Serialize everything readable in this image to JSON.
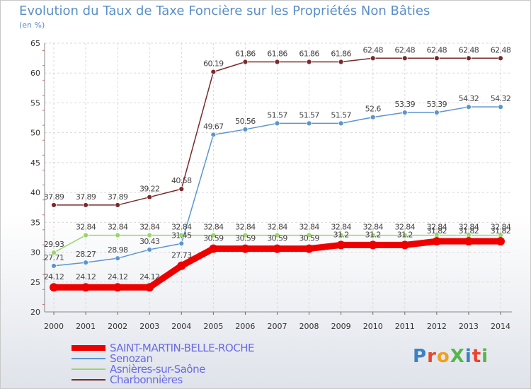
{
  "chart_data": {
    "type": "line",
    "title": "Evolution du Taux de Taxe Foncière sur les Propriétés Non Bâties",
    "ylabel": "(en %)",
    "ylim": [
      20,
      65
    ],
    "yticks": [
      20,
      25,
      30,
      35,
      40,
      45,
      50,
      55,
      60,
      65
    ],
    "x": [
      "2000",
      "2001",
      "2002",
      "2003",
      "2004",
      "2005",
      "2006",
      "2007",
      "2008",
      "2009",
      "2010",
      "2011",
      "2012",
      "2013",
      "2014"
    ],
    "series": [
      {
        "name": "Charbonnières",
        "color": "#7a2a2a",
        "values": [
          37.89,
          37.89,
          37.89,
          39.22,
          40.58,
          60.19,
          61.86,
          61.86,
          61.86,
          61.86,
          62.48,
          62.48,
          62.48,
          62.48,
          62.48
        ],
        "labels": [
          "37.89",
          "37.89",
          "37.89",
          "39.22",
          "40.58",
          "60.19",
          "61.86",
          "61.86",
          "61.86",
          "61.86",
          "62.48",
          "62.48",
          "62.48",
          "62.48",
          "62.48"
        ]
      },
      {
        "name": "Senozan",
        "color": "#5b95cf",
        "values": [
          27.71,
          28.27,
          28.98,
          30.43,
          31.45,
          49.67,
          50.56,
          51.57,
          51.57,
          51.57,
          52.6,
          53.39,
          53.39,
          54.32,
          54.32
        ],
        "labels": [
          "27.71",
          "28.27",
          "28.98",
          "30.43",
          "31.45",
          "49.67",
          "50.56",
          "51.57",
          "51.57",
          "51.57",
          "52.6",
          "53.39",
          "53.39",
          "54.32",
          "54.32"
        ]
      },
      {
        "name": "Asnières-sur-Saône",
        "color": "#9ad46a",
        "values": [
          29.93,
          32.84,
          32.84,
          32.84,
          32.84,
          32.84,
          32.84,
          32.84,
          32.84,
          32.84,
          32.84,
          32.84,
          32.84,
          32.84,
          32.84
        ],
        "labels": [
          "29.93",
          "32.84",
          "32.84",
          "32.84",
          "32.84",
          "32.84",
          "32.84",
          "32.84",
          "32.84",
          "32.84",
          "32.84",
          "32.84",
          "32.84",
          "32.84",
          "32.84"
        ]
      },
      {
        "name": "SAINT-MARTIN-BELLE-ROCHE",
        "color": "#ee0000",
        "values": [
          24.12,
          24.12,
          24.12,
          24.12,
          27.73,
          30.59,
          30.59,
          30.59,
          30.59,
          31.2,
          31.2,
          31.2,
          31.82,
          31.82,
          31.82
        ],
        "labels": [
          "24.12",
          "24.12",
          "24.12",
          "24.12",
          "27.73",
          "30.59",
          "30.59",
          "30.59",
          "30.59",
          "31.2",
          "31.2",
          "31.2",
          "31.82",
          "31.82",
          "31.82"
        ]
      }
    ],
    "legend": [
      "SAINT-MARTIN-BELLE-ROCHE",
      "Senozan",
      "Asnières-sur-Saône",
      "Charbonnières"
    ]
  },
  "brand": {
    "logo_text": "ProXiti"
  }
}
